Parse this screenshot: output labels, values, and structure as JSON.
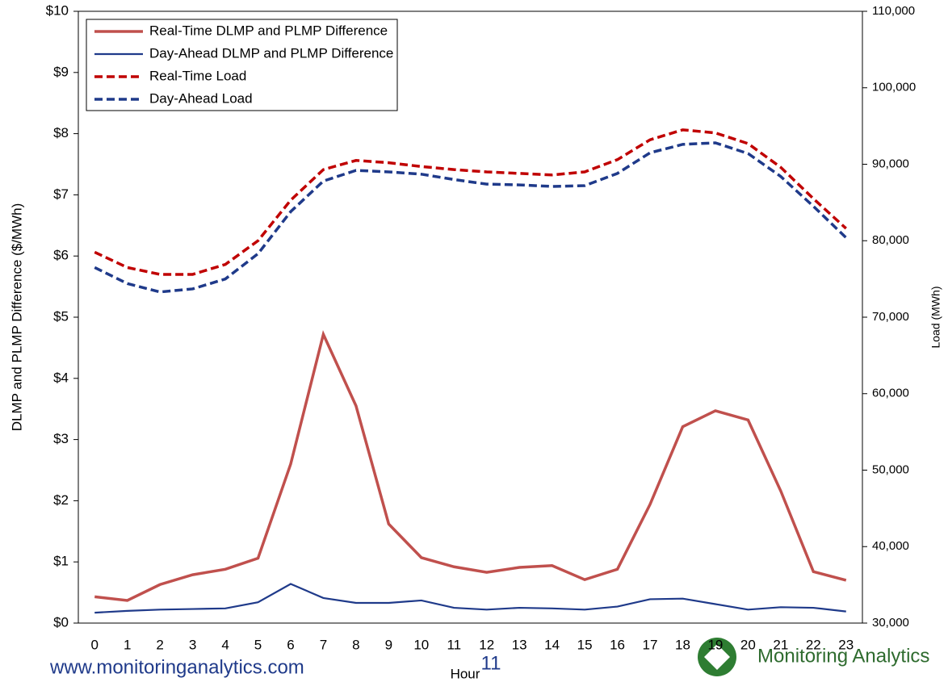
{
  "chart_data": {
    "type": "line",
    "x_label": "Hour",
    "y_label": "DLMP and PLMP Difference ($/MWh)",
    "y2_label": "Load (MWh)",
    "categories": [
      "0",
      "1",
      "2",
      "3",
      "4",
      "5",
      "6",
      "7",
      "8",
      "9",
      "10",
      "11",
      "12",
      "13",
      "14",
      "15",
      "16",
      "17",
      "18",
      "19",
      "20",
      "21",
      "22",
      "23"
    ],
    "ylim": [
      0,
      10
    ],
    "yticks": [
      {
        "value": 0,
        "label": "$0"
      },
      {
        "value": 1,
        "label": "$1"
      },
      {
        "value": 2,
        "label": "$2"
      },
      {
        "value": 3,
        "label": "$3"
      },
      {
        "value": 4,
        "label": "$4"
      },
      {
        "value": 5,
        "label": "$5"
      },
      {
        "value": 6,
        "label": "$6"
      },
      {
        "value": 7,
        "label": "$7"
      },
      {
        "value": 8,
        "label": "$8"
      },
      {
        "value": 9,
        "label": "$9"
      },
      {
        "value": 10,
        "label": "$10"
      }
    ],
    "y2lim": [
      30000,
      110000
    ],
    "y2ticks": [
      {
        "value": 30000,
        "label": "30,000"
      },
      {
        "value": 40000,
        "label": "40,000"
      },
      {
        "value": 50000,
        "label": "50,000"
      },
      {
        "value": 60000,
        "label": "60,000"
      },
      {
        "value": 70000,
        "label": "70,000"
      },
      {
        "value": 80000,
        "label": "80,000"
      },
      {
        "value": 90000,
        "label": "90,000"
      },
      {
        "value": 100000,
        "label": "100,000"
      },
      {
        "value": 110000,
        "label": "110,000"
      }
    ],
    "legend": "upper left",
    "series": [
      {
        "name": "Real-Time DLMP and PLMP Difference",
        "color": "#c0504d",
        "dashed": false,
        "values": [
          0.43,
          0.37,
          0.63,
          0.79,
          0.88,
          1.06,
          2.6,
          4.72,
          3.55,
          1.62,
          1.07,
          0.92,
          0.83,
          0.91,
          0.94,
          0.71,
          0.88,
          1.94,
          3.21,
          3.47,
          3.32,
          2.16,
          0.84,
          0.7
        ]
      },
      {
        "name": "Day-Ahead DLMP and PLMP Difference",
        "color": "#1f3a8a",
        "dashed": false,
        "values": [
          0.17,
          0.2,
          0.22,
          0.23,
          0.24,
          0.34,
          0.64,
          0.41,
          0.33,
          0.33,
          0.37,
          0.25,
          0.22,
          0.25,
          0.24,
          0.22,
          0.27,
          0.39,
          0.4,
          0.31,
          0.22,
          0.26,
          0.25,
          0.19
        ]
      },
      {
        "name": "Real-Time Load",
        "color": "#c00000",
        "dashed": true,
        "axis": "y2",
        "values": [
          78500,
          76500,
          75600,
          75600,
          76900,
          80000,
          85300,
          89300,
          90500,
          90200,
          89700,
          89300,
          89000,
          88800,
          88600,
          89000,
          90600,
          93200,
          94500,
          94100,
          92700,
          89600,
          85500,
          81600
        ]
      },
      {
        "name": "Day-Ahead Load",
        "color": "#1f3a8a",
        "dashed": true,
        "axis": "y2",
        "values": [
          76500,
          74400,
          73300,
          73700,
          75000,
          78300,
          83800,
          87800,
          89200,
          89000,
          88700,
          88000,
          87400,
          87300,
          87100,
          87200,
          88800,
          91500,
          92600,
          92800,
          91400,
          88400,
          84500,
          80400
        ]
      }
    ]
  },
  "footer": {
    "url": "www.monitoringanalytics.com",
    "page": "11",
    "logo": "Monitoring Analytics"
  }
}
